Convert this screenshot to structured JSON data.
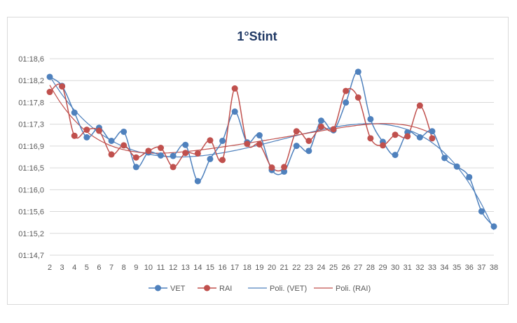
{
  "chart_data": {
    "type": "line",
    "title": "1°Stint",
    "xlabel": "",
    "ylabel": "",
    "x": [
      2,
      3,
      4,
      5,
      6,
      7,
      8,
      9,
      10,
      11,
      12,
      13,
      14,
      15,
      16,
      17,
      18,
      19,
      20,
      21,
      22,
      23,
      24,
      25,
      26,
      27,
      28,
      29,
      30,
      31,
      32,
      33,
      34,
      35,
      36,
      37,
      38
    ],
    "y_ticks": [
      "01:14,7",
      "01:15,2",
      "01:15,6",
      "01:16,0",
      "01:16,5",
      "01:16,9",
      "01:17,3",
      "01:17,8",
      "01:18,2",
      "01:18,6"
    ],
    "ylim": [
      74.7,
      78.6
    ],
    "grid": true,
    "legend_position": "bottom",
    "series": [
      {
        "name": "VET",
        "color": "#4f81bd",
        "x": [
          2,
          3,
          4,
          5,
          6,
          7,
          8,
          9,
          10,
          11,
          12,
          13,
          14,
          15,
          16,
          17,
          18,
          19,
          20,
          21,
          22,
          23,
          24,
          25,
          26,
          27,
          28,
          29,
          30,
          31,
          32,
          33,
          34,
          35,
          36,
          37,
          38
        ],
        "values": [
          78.24,
          78.06,
          77.53,
          77.04,
          77.23,
          76.97,
          77.15,
          76.45,
          76.74,
          76.68,
          76.67,
          76.89,
          76.17,
          76.61,
          76.97,
          77.55,
          76.94,
          77.08,
          76.39,
          76.36,
          76.87,
          76.77,
          77.37,
          77.18,
          77.73,
          78.34,
          77.4,
          76.95,
          76.69,
          77.14,
          77.04,
          77.16,
          76.63,
          76.46,
          76.25,
          75.57,
          75.27
        ]
      },
      {
        "name": "RAI",
        "color": "#c0504d",
        "x": [
          2,
          3,
          4,
          5,
          6,
          7,
          8,
          9,
          10,
          11,
          12,
          13,
          14,
          15,
          16,
          17,
          18,
          19,
          20,
          21,
          22,
          23,
          24,
          25,
          26,
          27,
          28,
          29,
          30,
          31,
          32,
          33
        ],
        "values": [
          77.94,
          78.05,
          77.07,
          77.19,
          77.17,
          76.7,
          76.88,
          76.64,
          76.77,
          76.83,
          76.45,
          76.73,
          76.72,
          76.98,
          76.59,
          78.01,
          76.91,
          76.9,
          76.44,
          76.45,
          77.16,
          76.97,
          77.25,
          77.2,
          77.96,
          77.83,
          77.02,
          76.88,
          77.09,
          77.06,
          77.67,
          77.02
        ]
      },
      {
        "name": "Poli. (VET)",
        "color": "#4f81bd",
        "trend_of": "VET"
      },
      {
        "name": "Poli. (RAI)",
        "color": "#c0504d",
        "trend_of": "RAI"
      }
    ]
  }
}
